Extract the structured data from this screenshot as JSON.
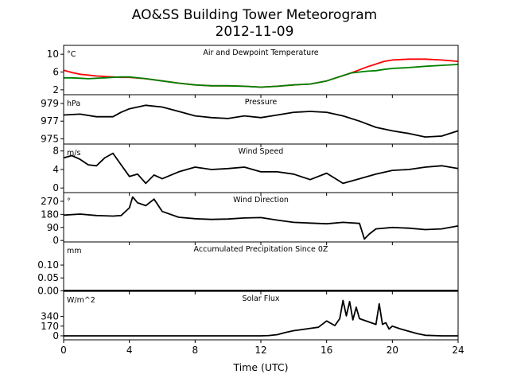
{
  "chart_data": {
    "type": "line",
    "title": "AO&SS Building Tower Meteorogram",
    "subtitle": "2012-11-09",
    "xlabel": "Time (UTC)",
    "xlim": [
      0,
      24
    ],
    "xticks": [
      "0",
      "4",
      "8",
      "12",
      "16",
      "20",
      "24"
    ],
    "panels": [
      {
        "title": "Air and Dewpoint Temperature",
        "unit": "°C",
        "ylim": [
          0.9,
          12.0
        ],
        "yticks": [
          2,
          6,
          10
        ],
        "ytick_labels": [
          "2",
          "6",
          "10"
        ],
        "series": [
          {
            "color": "#ff0000",
            "x": [
              0,
              0.5,
              1,
              1.5,
              2,
              2.5,
              3,
              3.5,
              4,
              5,
              6,
              7,
              8,
              9,
              10,
              11,
              12,
              13,
              14,
              15,
              16,
              16.5,
              17,
              17.5,
              18,
              18.5,
              19,
              19.5,
              20,
              21,
              22,
              23,
              24
            ],
            "y": [
              6.4,
              5.9,
              5.5,
              5.3,
              5.1,
              5.0,
              4.9,
              4.8,
              4.8,
              4.5,
              4.0,
              3.5,
              3.1,
              2.9,
              2.9,
              2.8,
              2.6,
              2.8,
              3.1,
              3.3,
              4.0,
              4.6,
              5.2,
              5.8,
              6.5,
              7.2,
              7.8,
              8.4,
              8.7,
              8.9,
              8.9,
              8.7,
              8.4
            ]
          },
          {
            "color": "#008000",
            "x": [
              0,
              0.5,
              1,
              1.5,
              2,
              2.5,
              3,
              3.5,
              4,
              5,
              6,
              7,
              8,
              9,
              10,
              11,
              12,
              13,
              14,
              15,
              16,
              16.5,
              17,
              17.5,
              18,
              18.5,
              19,
              19.5,
              20,
              21,
              22,
              23,
              24
            ],
            "y": [
              4.7,
              4.7,
              4.6,
              4.5,
              4.6,
              4.7,
              4.8,
              4.9,
              4.9,
              4.5,
              4.0,
              3.5,
              3.1,
              2.9,
              2.9,
              2.8,
              2.6,
              2.8,
              3.1,
              3.3,
              4.0,
              4.6,
              5.2,
              5.8,
              6.0,
              6.2,
              6.3,
              6.6,
              6.8,
              7.0,
              7.3,
              7.5,
              7.7
            ]
          }
        ]
      },
      {
        "title": "Pressure",
        "unit": "hPa",
        "ylim": [
          974.4,
          980.0
        ],
        "yticks": [
          975,
          977,
          979
        ],
        "ytick_labels": [
          "975",
          "977",
          "979"
        ],
        "series": [
          {
            "color": "#000000",
            "x": [
              0,
              1,
              2,
              3,
              3.5,
              4,
              5,
              6,
              7,
              8,
              9,
              10,
              11,
              12,
              13,
              14,
              15,
              16,
              17,
              18,
              19,
              20,
              21,
              22,
              23,
              24
            ],
            "y": [
              977.7,
              977.8,
              977.5,
              977.5,
              978.0,
              978.4,
              978.8,
              978.6,
              978.1,
              977.6,
              977.4,
              977.3,
              977.6,
              977.4,
              977.7,
              978.0,
              978.1,
              978.0,
              977.6,
              977.0,
              976.3,
              975.9,
              975.6,
              975.2,
              975.3,
              975.9
            ]
          }
        ]
      },
      {
        "title": "Wind Speed",
        "unit": "m/s",
        "ylim": [
          -1.0,
          9.5
        ],
        "yticks": [
          0,
          4,
          8
        ],
        "ytick_labels": [
          "0",
          "4",
          "8"
        ],
        "series": [
          {
            "color": "#000000",
            "x": [
              0,
              0.5,
              1,
              1.5,
              2,
              2.5,
              3,
              3.5,
              4,
              4.5,
              5,
              5.5,
              6,
              7,
              8,
              9,
              10,
              11,
              12,
              13,
              14,
              15,
              16,
              17,
              18,
              19,
              20,
              21,
              22,
              23,
              24
            ],
            "y": [
              6.5,
              7.0,
              6.2,
              5.0,
              4.8,
              6.5,
              7.5,
              5.0,
              2.5,
              3.0,
              1.0,
              2.8,
              2.0,
              3.5,
              4.5,
              4.0,
              4.2,
              4.5,
              3.5,
              3.5,
              3.0,
              1.8,
              3.2,
              1.0,
              2.0,
              3.0,
              3.8,
              4.0,
              4.5,
              4.8,
              4.2
            ]
          }
        ]
      },
      {
        "title": "Wind Direction",
        "unit": "°",
        "ylim": [
          -10,
          330
        ],
        "yticks": [
          0,
          90,
          180,
          270
        ],
        "ytick_labels": [
          "0",
          "90",
          "180",
          "270"
        ],
        "series": [
          {
            "color": "#000000",
            "x": [
              0,
              1,
              2,
              3,
              3.5,
              4,
              4.2,
              4.5,
              5,
              5.5,
              6,
              7,
              8,
              9,
              10,
              11,
              12,
              13,
              14,
              15,
              16,
              17,
              18,
              18.3,
              18.6,
              19,
              20,
              21,
              22,
              23,
              24
            ],
            "y": [
              175,
              182,
              172,
              168,
              172,
              225,
              300,
              260,
              240,
              285,
              200,
              160,
              150,
              145,
              148,
              155,
              158,
              140,
              125,
              120,
              115,
              125,
              118,
              10,
              45,
              80,
              90,
              85,
              75,
              80,
              100
            ]
          }
        ]
      },
      {
        "title": "Accumulated Precipitation Since 0Z",
        "unit": "mm",
        "ylim": [
          -0.002,
          0.19
        ],
        "yticks": [
          0,
          0.05,
          0.1
        ],
        "ytick_labels": [
          "0.00",
          "0.05",
          "0.10"
        ],
        "series": [
          {
            "color": "#000000",
            "x": [
              0,
              24
            ],
            "y": [
              0,
              0
            ]
          }
        ]
      },
      {
        "title": "Solar Flux",
        "unit": "W/m^2",
        "ylim": [
          -70,
          780
        ],
        "yticks": [
          0,
          170,
          340
        ],
        "ytick_labels": [
          "0",
          "170",
          "340"
        ],
        "series": [
          {
            "color": "#000000",
            "x": [
              0,
              6,
              12,
              12.5,
              13,
              13.5,
              14,
              14.5,
              15,
              15.5,
              16,
              16.5,
              16.8,
              17,
              17.2,
              17.4,
              17.6,
              17.8,
              18,
              18.5,
              19,
              19.2,
              19.4,
              19.6,
              19.8,
              20,
              20.5,
              21,
              21.5,
              22,
              23,
              24
            ],
            "y": [
              0,
              0,
              0,
              5,
              20,
              60,
              90,
              110,
              130,
              150,
              260,
              180,
              300,
              620,
              350,
              600,
              280,
              500,
              300,
              250,
              200,
              560,
              200,
              230,
              120,
              170,
              120,
              80,
              40,
              10,
              0,
              0
            ]
          }
        ]
      }
    ]
  }
}
